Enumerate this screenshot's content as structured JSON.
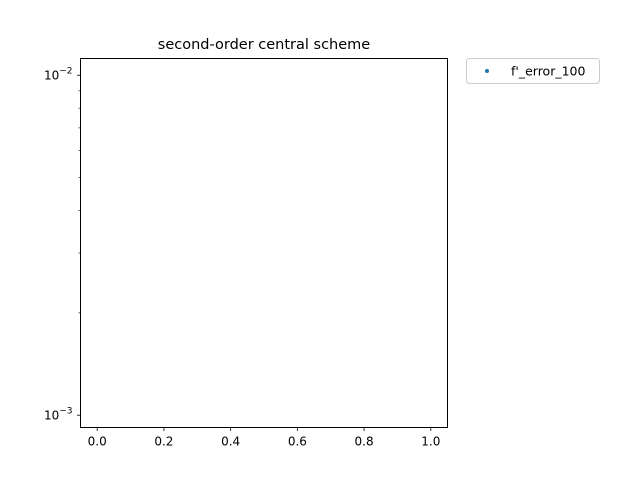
{
  "chart_data": {
    "type": "scatter",
    "title": "second-order central scheme",
    "xlabel": "",
    "ylabel": "",
    "xlim": [
      -0.05,
      1.05
    ],
    "ylim": [
      0.00092,
      0.0112
    ],
    "yscale": "log",
    "grid": false,
    "x_ticks": [
      0.0,
      0.2,
      0.4,
      0.6,
      0.8,
      1.0
    ],
    "x_tick_labels": [
      "0.0",
      "0.2",
      "0.4",
      "0.6",
      "0.8",
      "1.0"
    ],
    "y_major_ticks": [
      {
        "value": 0.01,
        "base": "10",
        "exponent": "−2"
      },
      {
        "value": 0.001,
        "base": "10",
        "exponent": "−3"
      }
    ],
    "y_minor_ticks": [
      0.002,
      0.003,
      0.004,
      0.005,
      0.006,
      0.007,
      0.008,
      0.009
    ],
    "series": [
      {
        "name": "f'_error_100",
        "color": "#1f77b4",
        "marker": "dot",
        "x": [],
        "y": []
      }
    ],
    "legend": {
      "placement": "outside-upper-right",
      "entries": [
        "f'_error_100"
      ]
    }
  }
}
